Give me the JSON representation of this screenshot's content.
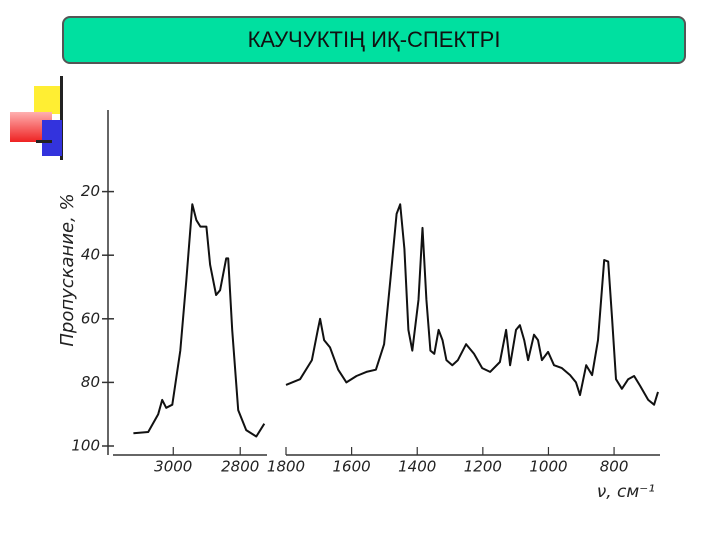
{
  "title": "КАУЧУКТІҢ ИҚ-СПЕКТРІ",
  "chart_data": [
    {
      "type": "line",
      "y_label": "Пропускание, %",
      "x": [
        3119,
        3075,
        3045,
        3033,
        3021,
        3003,
        2979,
        2961,
        2943,
        2931,
        2919,
        2901,
        2890,
        2872,
        2860,
        2842,
        2836,
        2824,
        2806,
        2782,
        2752,
        2728
      ],
      "values": [
        96,
        95.6,
        90,
        85.5,
        88,
        87,
        70,
        48,
        24,
        29,
        31,
        31,
        43,
        52.5,
        51,
        41,
        41,
        63.5,
        88.7,
        95,
        97,
        93
      ],
      "color": "#111111",
      "xlim": [
        3180,
        2720
      ],
      "xticks": [
        3000,
        2800
      ],
      "ylim": [
        0,
        100
      ],
      "yticks": [
        20,
        40,
        60,
        80,
        100
      ]
    },
    {
      "type": "line",
      "x_label": "ν, см⁻¹",
      "x": [
        1800,
        1757,
        1721,
        1703,
        1696,
        1684,
        1666,
        1641,
        1616,
        1585,
        1555,
        1526,
        1501,
        1482,
        1463,
        1452,
        1439,
        1427,
        1415,
        1396,
        1384,
        1372,
        1360,
        1348,
        1335,
        1323,
        1311,
        1293,
        1276,
        1251,
        1227,
        1202,
        1178,
        1148,
        1129,
        1117,
        1099,
        1087,
        1074,
        1062,
        1044,
        1032,
        1020,
        1001,
        983,
        959,
        934,
        916,
        904,
        885,
        867,
        849,
        830,
        818,
        806,
        794,
        776,
        757,
        739,
        721,
        696,
        678,
        666
      ],
      "values": [
        80.8,
        79,
        73,
        63.5,
        60,
        66.7,
        69,
        76,
        80,
        78,
        76.7,
        76,
        68,
        48,
        27,
        24,
        38,
        63.5,
        70,
        54,
        31.4,
        54,
        70,
        71,
        63.5,
        66.7,
        73,
        74.6,
        73,
        68,
        71,
        75.5,
        76.7,
        73.6,
        63.5,
        74.6,
        63.5,
        62,
        66.7,
        73,
        65,
        66.7,
        73,
        70.4,
        74.6,
        75.5,
        77.7,
        80,
        84,
        74.6,
        77.7,
        66.7,
        41.5,
        42,
        60,
        79,
        82,
        79,
        78,
        81,
        85.5,
        87,
        83
      ],
      "color": "#111111",
      "xlim": [
        1800,
        660
      ],
      "xticks": [
        1800,
        1600,
        1400,
        1200,
        1000,
        800
      ],
      "ylim": [
        0,
        100
      ]
    }
  ]
}
